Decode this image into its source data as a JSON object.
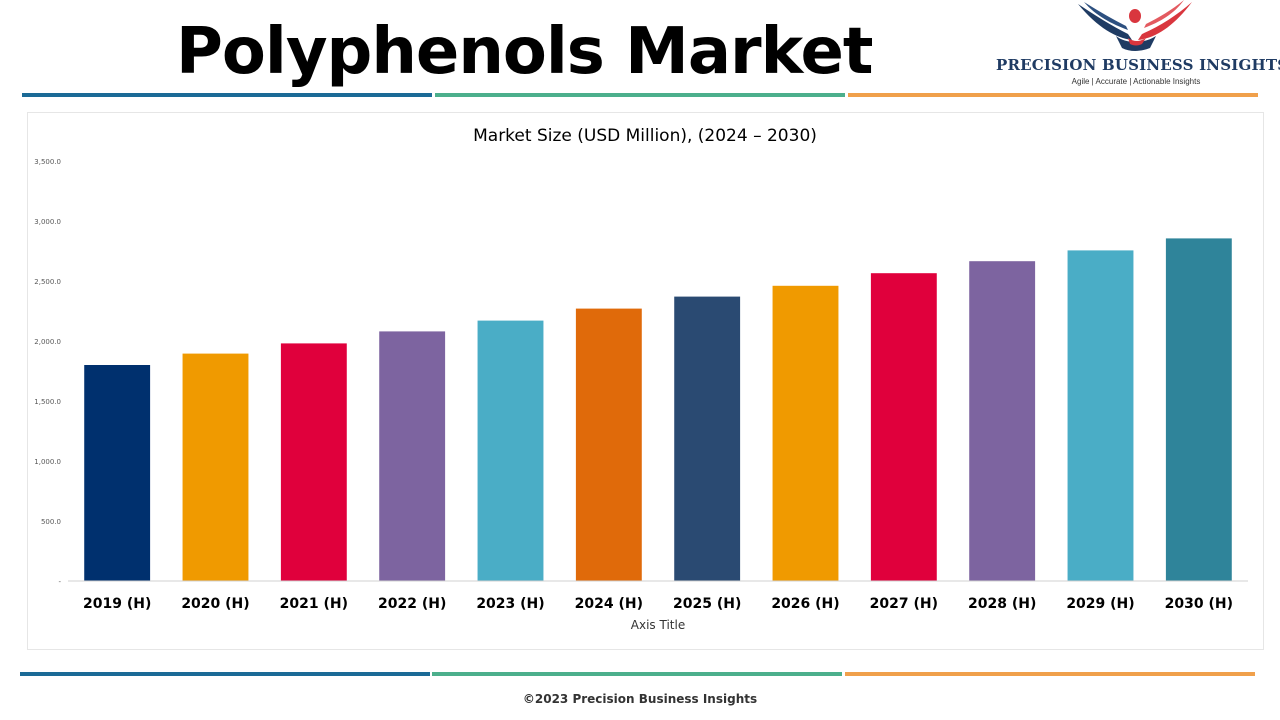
{
  "header": {
    "title": "Polyphenols Market"
  },
  "logo": {
    "name": "PRECISION BUSINESS INSIGHTS",
    "tagline": "Agile | Accurate | Actionable Insights"
  },
  "colors": {
    "stripe_blue": "#1b6a96",
    "stripe_green": "#4caf8c",
    "stripe_orange": "#f0a04b",
    "logo_navy": "#1f3b63",
    "logo_red": "#d9363e"
  },
  "chart_data": {
    "type": "bar",
    "title": "Market Size (USD Million), (2024 – 2030)",
    "xlabel": "Axis Title",
    "ylabel": "",
    "ylim": [
      0,
      3500
    ],
    "yticks": [
      0,
      500,
      1000,
      1500,
      2000,
      2500,
      3000,
      3500
    ],
    "ytick_labels": [
      "-",
      "500.0",
      "1,000.0",
      "1,500.0",
      "2,000.0",
      "2,500.0",
      "3,000.0",
      "3,500.0"
    ],
    "grid": false,
    "legend": "none",
    "categories": [
      "2019 (H)",
      "2020 (H)",
      "2021 (H)",
      "2022 (H)",
      "2023 (H)",
      "2024 (H)",
      "2025 (H)",
      "2026 (H)",
      "2027 (H)",
      "2028 (H)",
      "2029 (H)",
      "2030 (H)"
    ],
    "values": [
      1800,
      1895,
      1980,
      2080,
      2170,
      2270,
      2370,
      2460,
      2565,
      2665,
      2755,
      2855
    ],
    "bar_colors": [
      "#00306e",
      "#f09a00",
      "#e0003c",
      "#7d64a0",
      "#4aadc6",
      "#e06a0a",
      "#2a4a72",
      "#f09a00",
      "#e0003c",
      "#7d64a0",
      "#4aadc6",
      "#2f849a"
    ]
  },
  "footer": {
    "copyright": "©2023 Precision Business Insights"
  }
}
